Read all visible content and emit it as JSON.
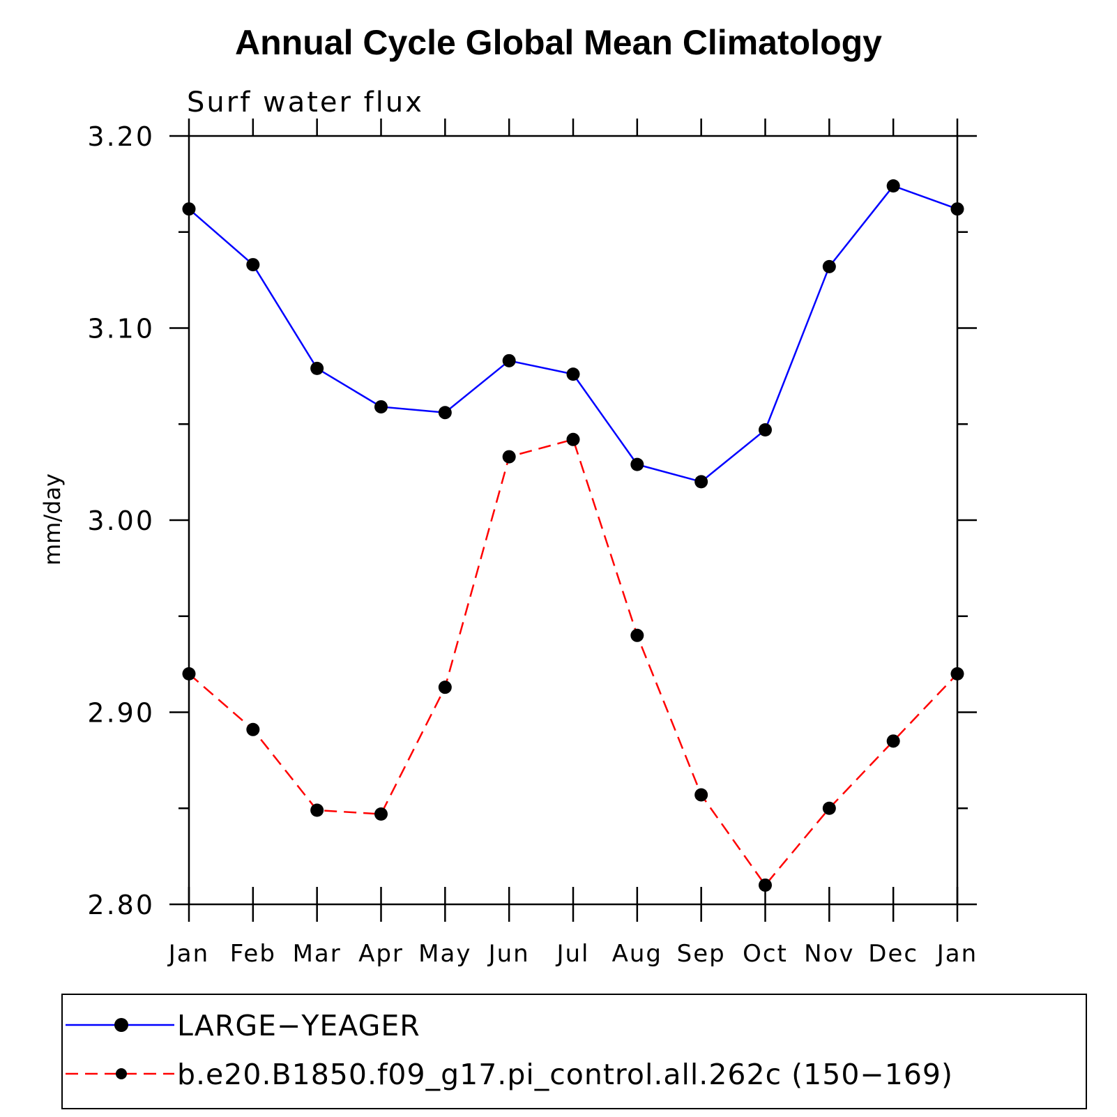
{
  "chart_data": {
    "type": "line",
    "title": "Annual Cycle Global Mean Climatology",
    "subtitle": "Surf water flux",
    "xlabel": "",
    "ylabel": "mm/day",
    "categories": [
      "Jan",
      "Feb",
      "Mar",
      "Apr",
      "May",
      "Jun",
      "Jul",
      "Aug",
      "Sep",
      "Oct",
      "Nov",
      "Dec",
      "Jan"
    ],
    "ylim": [
      2.8,
      3.2
    ],
    "yticks": [
      "3.20",
      "3.10",
      "3.00",
      "2.90",
      "2.80"
    ],
    "grid": false,
    "legend_position": "bottom",
    "series": [
      {
        "name": "LARGE−YEAGER",
        "color": "#0000ff",
        "dash": "solid",
        "values": [
          3.162,
          3.133,
          3.079,
          3.059,
          3.056,
          3.083,
          3.076,
          3.029,
          3.02,
          3.047,
          3.132,
          3.174,
          3.162
        ]
      },
      {
        "name": "b.e20.B1850.f09_g17.pi_control.all.262c (150−169)",
        "color": "#ff0000",
        "dash": "dashed",
        "values": [
          2.92,
          2.891,
          2.849,
          2.847,
          2.913,
          3.033,
          3.042,
          2.94,
          2.857,
          2.81,
          2.85,
          2.885,
          2.92
        ]
      }
    ]
  }
}
